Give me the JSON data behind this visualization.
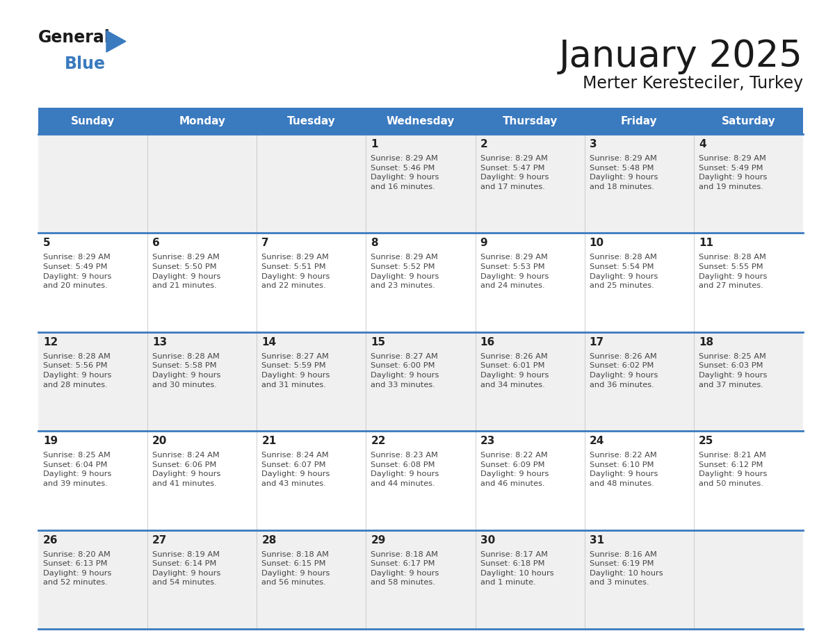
{
  "title": "January 2025",
  "subtitle": "Merter Keresteciler, Turkey",
  "days_of_week": [
    "Sunday",
    "Monday",
    "Tuesday",
    "Wednesday",
    "Thursday",
    "Friday",
    "Saturday"
  ],
  "header_bg": "#3a7abf",
  "header_text": "#ffffff",
  "row_bg_odd": "#f0f0f0",
  "row_bg_even": "#ffffff",
  "divider_color": "#3a7abf",
  "day_number_color": "#222222",
  "cell_text_color": "#444444",
  "title_color": "#1a1a1a",
  "subtitle_color": "#1a1a1a",
  "logo_general_color": "#1a1a1a",
  "logo_blue_color": "#3a7abf",
  "weeks": [
    [
      {
        "day": null,
        "info": null
      },
      {
        "day": null,
        "info": null
      },
      {
        "day": null,
        "info": null
      },
      {
        "day": 1,
        "info": "Sunrise: 8:29 AM\nSunset: 5:46 PM\nDaylight: 9 hours\nand 16 minutes."
      },
      {
        "day": 2,
        "info": "Sunrise: 8:29 AM\nSunset: 5:47 PM\nDaylight: 9 hours\nand 17 minutes."
      },
      {
        "day": 3,
        "info": "Sunrise: 8:29 AM\nSunset: 5:48 PM\nDaylight: 9 hours\nand 18 minutes."
      },
      {
        "day": 4,
        "info": "Sunrise: 8:29 AM\nSunset: 5:49 PM\nDaylight: 9 hours\nand 19 minutes."
      }
    ],
    [
      {
        "day": 5,
        "info": "Sunrise: 8:29 AM\nSunset: 5:49 PM\nDaylight: 9 hours\nand 20 minutes."
      },
      {
        "day": 6,
        "info": "Sunrise: 8:29 AM\nSunset: 5:50 PM\nDaylight: 9 hours\nand 21 minutes."
      },
      {
        "day": 7,
        "info": "Sunrise: 8:29 AM\nSunset: 5:51 PM\nDaylight: 9 hours\nand 22 minutes."
      },
      {
        "day": 8,
        "info": "Sunrise: 8:29 AM\nSunset: 5:52 PM\nDaylight: 9 hours\nand 23 minutes."
      },
      {
        "day": 9,
        "info": "Sunrise: 8:29 AM\nSunset: 5:53 PM\nDaylight: 9 hours\nand 24 minutes."
      },
      {
        "day": 10,
        "info": "Sunrise: 8:28 AM\nSunset: 5:54 PM\nDaylight: 9 hours\nand 25 minutes."
      },
      {
        "day": 11,
        "info": "Sunrise: 8:28 AM\nSunset: 5:55 PM\nDaylight: 9 hours\nand 27 minutes."
      }
    ],
    [
      {
        "day": 12,
        "info": "Sunrise: 8:28 AM\nSunset: 5:56 PM\nDaylight: 9 hours\nand 28 minutes."
      },
      {
        "day": 13,
        "info": "Sunrise: 8:28 AM\nSunset: 5:58 PM\nDaylight: 9 hours\nand 30 minutes."
      },
      {
        "day": 14,
        "info": "Sunrise: 8:27 AM\nSunset: 5:59 PM\nDaylight: 9 hours\nand 31 minutes."
      },
      {
        "day": 15,
        "info": "Sunrise: 8:27 AM\nSunset: 6:00 PM\nDaylight: 9 hours\nand 33 minutes."
      },
      {
        "day": 16,
        "info": "Sunrise: 8:26 AM\nSunset: 6:01 PM\nDaylight: 9 hours\nand 34 minutes."
      },
      {
        "day": 17,
        "info": "Sunrise: 8:26 AM\nSunset: 6:02 PM\nDaylight: 9 hours\nand 36 minutes."
      },
      {
        "day": 18,
        "info": "Sunrise: 8:25 AM\nSunset: 6:03 PM\nDaylight: 9 hours\nand 37 minutes."
      }
    ],
    [
      {
        "day": 19,
        "info": "Sunrise: 8:25 AM\nSunset: 6:04 PM\nDaylight: 9 hours\nand 39 minutes."
      },
      {
        "day": 20,
        "info": "Sunrise: 8:24 AM\nSunset: 6:06 PM\nDaylight: 9 hours\nand 41 minutes."
      },
      {
        "day": 21,
        "info": "Sunrise: 8:24 AM\nSunset: 6:07 PM\nDaylight: 9 hours\nand 43 minutes."
      },
      {
        "day": 22,
        "info": "Sunrise: 8:23 AM\nSunset: 6:08 PM\nDaylight: 9 hours\nand 44 minutes."
      },
      {
        "day": 23,
        "info": "Sunrise: 8:22 AM\nSunset: 6:09 PM\nDaylight: 9 hours\nand 46 minutes."
      },
      {
        "day": 24,
        "info": "Sunrise: 8:22 AM\nSunset: 6:10 PM\nDaylight: 9 hours\nand 48 minutes."
      },
      {
        "day": 25,
        "info": "Sunrise: 8:21 AM\nSunset: 6:12 PM\nDaylight: 9 hours\nand 50 minutes."
      }
    ],
    [
      {
        "day": 26,
        "info": "Sunrise: 8:20 AM\nSunset: 6:13 PM\nDaylight: 9 hours\nand 52 minutes."
      },
      {
        "day": 27,
        "info": "Sunrise: 8:19 AM\nSunset: 6:14 PM\nDaylight: 9 hours\nand 54 minutes."
      },
      {
        "day": 28,
        "info": "Sunrise: 8:18 AM\nSunset: 6:15 PM\nDaylight: 9 hours\nand 56 minutes."
      },
      {
        "day": 29,
        "info": "Sunrise: 8:18 AM\nSunset: 6:17 PM\nDaylight: 9 hours\nand 58 minutes."
      },
      {
        "day": 30,
        "info": "Sunrise: 8:17 AM\nSunset: 6:18 PM\nDaylight: 10 hours\nand 1 minute."
      },
      {
        "day": 31,
        "info": "Sunrise: 8:16 AM\nSunset: 6:19 PM\nDaylight: 10 hours\nand 3 minutes."
      },
      {
        "day": null,
        "info": null
      }
    ]
  ]
}
